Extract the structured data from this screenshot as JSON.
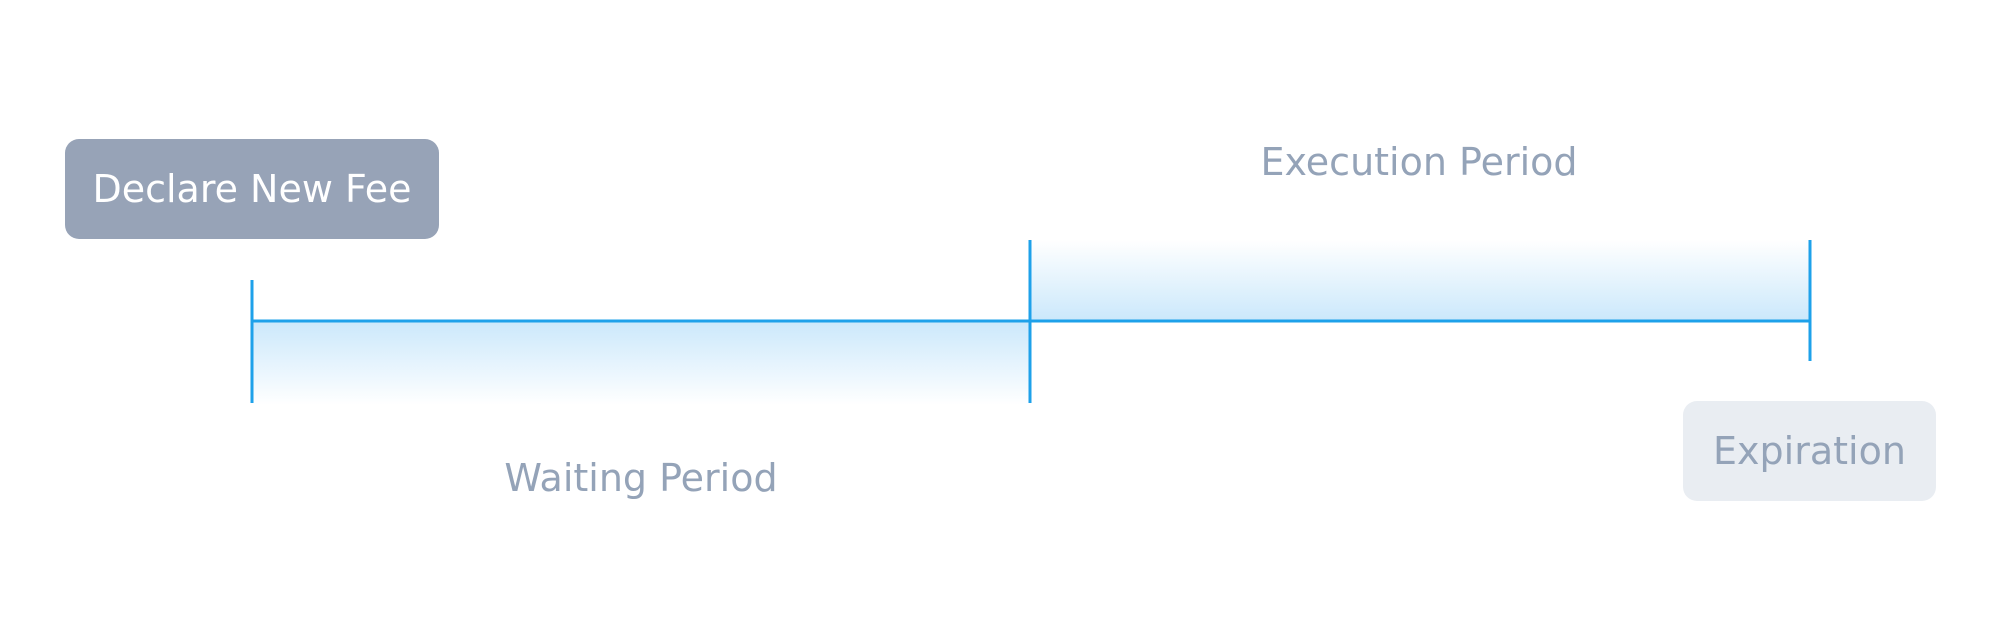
{
  "diagram": {
    "declare_label": "Declare New Fee",
    "expiration_label": "Expiration",
    "execution_label": "Execution Period",
    "waiting_label": "Waiting Period",
    "colors": {
      "timeline": "#1ea1ea",
      "band": "#cbe8fb",
      "declare_fill": "#97a3b7",
      "expiration_fill": "#e9edf2",
      "muted_text": "#94a3b8"
    }
  }
}
